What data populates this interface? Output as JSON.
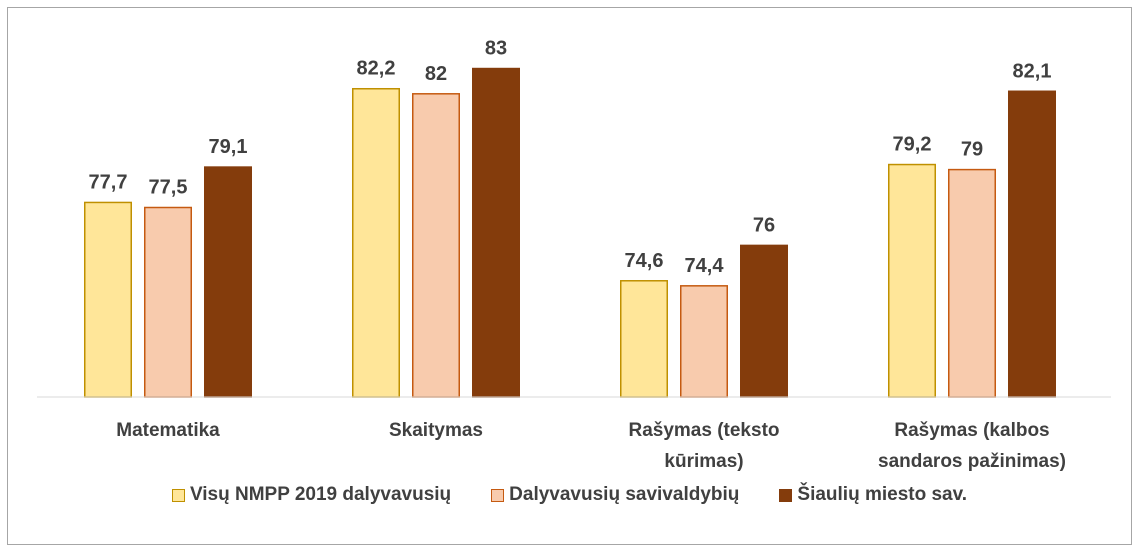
{
  "chart_data": {
    "type": "bar",
    "categories": [
      "Matematika",
      "Skaitymas",
      "Rašymas (teksto kūrimas)",
      "Rašymas (kalbos sandaros pažinimas)"
    ],
    "series": [
      {
        "name": "Visų NMPP 2019 dalyvavusių",
        "color": "#FFE699",
        "values": [
          77.7,
          82.2,
          74.6,
          79.2
        ],
        "value_labels": [
          "77,7",
          "82,2",
          "74,6",
          "79,2"
        ]
      },
      {
        "name": "Dalyvavusių savivaldybių",
        "color": "#F8CBAD",
        "values": [
          77.5,
          82,
          74.4,
          79
        ],
        "value_labels": [
          "77,5",
          "82",
          "74,4",
          "79"
        ]
      },
      {
        "name": "Šiaulių miesto sav.",
        "color": "#843C0C",
        "values": [
          79.1,
          83,
          76,
          82.1
        ],
        "value_labels": [
          "79,1",
          "83",
          "76",
          "82,1"
        ]
      }
    ],
    "ylim": [
      70,
      85
    ],
    "legend": "bottom"
  }
}
